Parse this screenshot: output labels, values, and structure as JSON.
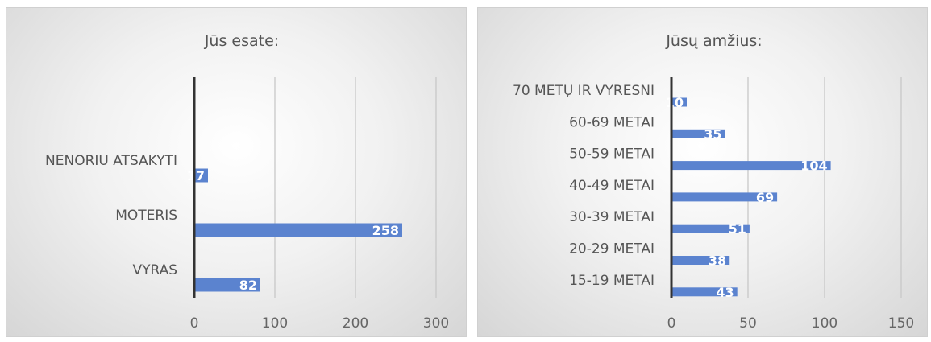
{
  "chart_data": [
    {
      "type": "bar",
      "orientation": "horizontal",
      "title": "Jūs esate:",
      "categories": [
        "NENORIU ATSAKYTI",
        "MOTERIS",
        "VYRAS"
      ],
      "values": [
        17,
        258,
        82
      ],
      "data_labels": [
        "17",
        "258",
        "82"
      ],
      "xlim": [
        0,
        300
      ],
      "xticks": [
        0,
        100,
        200,
        300
      ],
      "xtick_labels": [
        "0",
        "100",
        "200",
        "300"
      ],
      "grid": true,
      "bar_color": "#5b83cf"
    },
    {
      "type": "bar",
      "orientation": "horizontal",
      "title": "Jūsų amžius:",
      "categories": [
        "70 METŲ IR VYRESNI",
        "60-69 METAI",
        "50-59 METAI",
        "40-49 METAI",
        "30-39 METAI",
        "20-29 METAI",
        "15-19 METAI"
      ],
      "values": [
        10,
        35,
        104,
        69,
        51,
        38,
        43
      ],
      "data_labels": [
        "10",
        "35",
        "104",
        "69",
        "51",
        "38",
        "43"
      ],
      "xlim": [
        0,
        150
      ],
      "xticks": [
        0,
        50,
        100,
        150
      ],
      "xtick_labels": [
        "0",
        "50",
        "100",
        "150"
      ],
      "grid": true,
      "bar_color": "#5b83cf"
    }
  ]
}
